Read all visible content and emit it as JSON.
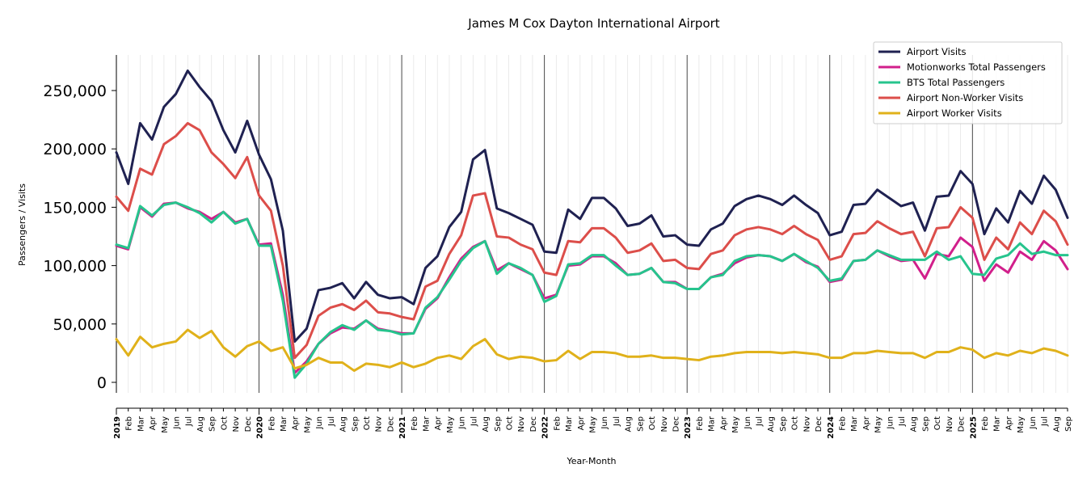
{
  "chart_data": {
    "type": "line",
    "title": "James M Cox Dayton International Airport",
    "xlabel": "Year-Month",
    "ylabel": "Passengers / Visits",
    "ylim": [
      -10000,
      280000
    ],
    "yticks": [
      0,
      50000,
      100000,
      150000,
      200000,
      250000
    ],
    "ytick_labels": [
      "0",
      "50,000",
      "100,000",
      "150,000",
      "200,000",
      "250,000"
    ],
    "grid": "vertical monthly gridlines, darker line at each January",
    "legend_position": "top-right",
    "x": [
      "2019-01",
      "2019-02",
      "2019-03",
      "2019-04",
      "2019-05",
      "2019-06",
      "2019-07",
      "2019-08",
      "2019-09",
      "2019-10",
      "2019-11",
      "2019-12",
      "2020-01",
      "2020-02",
      "2020-03",
      "2020-04",
      "2020-05",
      "2020-06",
      "2020-07",
      "2020-08",
      "2020-09",
      "2020-10",
      "2020-11",
      "2020-12",
      "2021-01",
      "2021-02",
      "2021-03",
      "2021-04",
      "2021-05",
      "2021-06",
      "2021-07",
      "2021-08",
      "2021-09",
      "2021-10",
      "2021-11",
      "2021-12",
      "2022-01",
      "2022-02",
      "2022-03",
      "2022-04",
      "2022-05",
      "2022-06",
      "2022-07",
      "2022-08",
      "2022-09",
      "2022-10",
      "2022-11",
      "2022-12",
      "2023-01",
      "2023-02",
      "2023-03",
      "2023-04",
      "2023-05",
      "2023-06",
      "2023-07",
      "2023-08",
      "2023-09",
      "2023-10",
      "2023-11",
      "2023-12",
      "2024-01",
      "2024-02",
      "2024-03",
      "2024-04",
      "2024-05",
      "2024-06",
      "2024-07",
      "2024-08",
      "2024-09",
      "2024-10",
      "2024-11",
      "2024-12",
      "2025-01",
      "2025-02",
      "2025-03",
      "2025-04",
      "2025-05",
      "2025-06",
      "2025-07",
      "2025-08",
      "2025-09"
    ],
    "tick_labels": [
      "2019",
      "Feb",
      "Mar",
      "Apr",
      "May",
      "Jun",
      "Jul",
      "Aug",
      "Sep",
      "Oct",
      "Nov",
      "Dec",
      "2020",
      "Feb",
      "Mar",
      "Apr",
      "May",
      "Jun",
      "Jul",
      "Aug",
      "Sep",
      "Oct",
      "Nov",
      "Dec",
      "2021",
      "Feb",
      "Mar",
      "Apr",
      "May",
      "Jun",
      "Jul",
      "Aug",
      "Sep",
      "Oct",
      "Nov",
      "Dec",
      "2022",
      "Feb",
      "Mar",
      "Apr",
      "May",
      "Jun",
      "Jul",
      "Aug",
      "Sep",
      "Oct",
      "Nov",
      "Dec",
      "2023",
      "Feb",
      "Mar",
      "Apr",
      "May",
      "Jun",
      "Jul",
      "Aug",
      "Sep",
      "Oct",
      "Nov",
      "Dec",
      "2024",
      "Feb",
      "Mar",
      "Apr",
      "May",
      "Jun",
      "Jul",
      "Aug",
      "Sep",
      "Oct",
      "Nov",
      "Dec",
      "2025",
      "Feb",
      "Mar",
      "Apr",
      "May",
      "Jun",
      "Jul",
      "Aug",
      "Sep"
    ],
    "series": [
      {
        "name": "Airport Visits",
        "color": "#1f2151",
        "values": [
          197000,
          170000,
          222000,
          208000,
          236000,
          247000,
          267000,
          253000,
          241000,
          216000,
          197000,
          224000,
          195000,
          174000,
          130000,
          35000,
          46000,
          79000,
          81000,
          85000,
          72000,
          86000,
          75000,
          72000,
          73000,
          67000,
          98000,
          108000,
          133000,
          146000,
          191000,
          199000,
          149000,
          145000,
          140000,
          135000,
          112000,
          111000,
          148000,
          140000,
          158000,
          158000,
          149000,
          134000,
          136000,
          143000,
          125000,
          126000,
          118000,
          117000,
          131000,
          136000,
          151000,
          157000,
          160000,
          157000,
          152000,
          160000,
          152000,
          145000,
          126000,
          129000,
          152000,
          153000,
          165000,
          158000,
          151000,
          154000,
          130000,
          159000,
          160000,
          181000,
          170000,
          127000,
          149000,
          137000,
          164000,
          153000,
          177000,
          165000,
          141000
        ]
      },
      {
        "name": "Motionworks Total Passengers",
        "color": "#d11f8b",
        "values": [
          117000,
          114000,
          150000,
          142000,
          153000,
          154000,
          149000,
          146000,
          140000,
          146000,
          137000,
          140000,
          118000,
          119000,
          75000,
          8000,
          18000,
          33000,
          42000,
          47000,
          46000,
          53000,
          46000,
          44000,
          42000,
          42000,
          63000,
          72000,
          90000,
          106000,
          116000,
          121000,
          96000,
          102000,
          97000,
          92000,
          72000,
          75000,
          100000,
          101000,
          108000,
          108000,
          102000,
          92000,
          93000,
          98000,
          86000,
          86000,
          80000,
          80000,
          90000,
          93000,
          102000,
          107000,
          109000,
          108000,
          104000,
          110000,
          103000,
          99000,
          86000,
          88000,
          104000,
          105000,
          113000,
          108000,
          104000,
          105000,
          89000,
          110000,
          108000,
          124000,
          116000,
          87000,
          101000,
          94000,
          112000,
          105000,
          121000,
          113000,
          97000
        ]
      },
      {
        "name": "BTS Total Passengers",
        "color": "#26c48d",
        "values": [
          118000,
          115000,
          151000,
          143000,
          152000,
          154000,
          150000,
          145000,
          137000,
          146000,
          136000,
          140000,
          117000,
          117000,
          70000,
          4000,
          16000,
          33000,
          43000,
          49000,
          45000,
          53000,
          45000,
          44000,
          41000,
          42000,
          64000,
          73000,
          88000,
          104000,
          115000,
          121000,
          93000,
          102000,
          98000,
          92000,
          69000,
          74000,
          101000,
          102000,
          109000,
          109000,
          100000,
          92000,
          93000,
          98000,
          86000,
          85000,
          80000,
          80000,
          90000,
          92000,
          104000,
          108000,
          109000,
          108000,
          104000,
          110000,
          104000,
          98000,
          87000,
          89000,
          104000,
          105000,
          113000,
          109000,
          105000,
          105000,
          105000,
          112000,
          105000,
          108000,
          93000,
          92000,
          106000,
          109000,
          119000,
          110000,
          112000,
          109000,
          109000
        ]
      },
      {
        "name": "Airport Non-Worker Visits",
        "color": "#dc4e4a",
        "values": [
          159000,
          147000,
          183000,
          178000,
          204000,
          211000,
          222000,
          216000,
          197000,
          187000,
          175000,
          193000,
          160000,
          147000,
          100000,
          21000,
          32000,
          57000,
          64000,
          67000,
          62000,
          70000,
          60000,
          59000,
          56000,
          54000,
          82000,
          87000,
          110000,
          126000,
          160000,
          162000,
          125000,
          124000,
          118000,
          114000,
          94000,
          92000,
          121000,
          120000,
          132000,
          132000,
          124000,
          111000,
          113000,
          119000,
          104000,
          105000,
          98000,
          97000,
          110000,
          113000,
          126000,
          131000,
          133000,
          131000,
          127000,
          134000,
          127000,
          122000,
          105000,
          108000,
          127000,
          128000,
          138000,
          132000,
          127000,
          129000,
          108000,
          132000,
          133000,
          150000,
          141000,
          105000,
          124000,
          114000,
          137000,
          127000,
          147000,
          138000,
          118000
        ]
      },
      {
        "name": "Airport Worker Visits",
        "color": "#e0b11a",
        "values": [
          37000,
          23000,
          39000,
          30000,
          33000,
          35000,
          45000,
          38000,
          44000,
          30000,
          22000,
          31000,
          35000,
          27000,
          30000,
          12000,
          15000,
          21000,
          17000,
          17000,
          10000,
          16000,
          15000,
          13000,
          17000,
          13000,
          16000,
          21000,
          23000,
          20000,
          31000,
          37000,
          24000,
          20000,
          22000,
          21000,
          18000,
          19000,
          27000,
          20000,
          26000,
          26000,
          25000,
          22000,
          22000,
          23000,
          21000,
          21000,
          20000,
          19000,
          22000,
          23000,
          25000,
          26000,
          26000,
          26000,
          25000,
          26000,
          25000,
          24000,
          21000,
          21000,
          25000,
          25000,
          27000,
          26000,
          25000,
          25000,
          21000,
          26000,
          26000,
          30000,
          28000,
          21000,
          25000,
          23000,
          27000,
          25000,
          29000,
          27000,
          23000
        ]
      }
    ]
  }
}
